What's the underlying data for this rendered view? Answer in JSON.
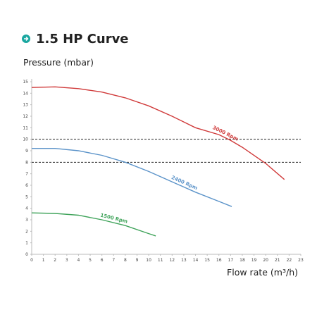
{
  "chart_data": {
    "type": "line",
    "title": "1.5 HP Curve",
    "y_label": "Pressure (mbar)",
    "x_label": "Flow rate (m³/h)",
    "xlim": [
      0,
      23
    ],
    "xticks": [
      0,
      1,
      2,
      3,
      4,
      5,
      6,
      7,
      8,
      9,
      10,
      11,
      12,
      13,
      14,
      15,
      16,
      17,
      18,
      19,
      20,
      21,
      22,
      23
    ],
    "ylim": [
      0,
      15
    ],
    "yticks": [
      0,
      1,
      2,
      3,
      4,
      5,
      6,
      7,
      8,
      9,
      10,
      11,
      12,
      13,
      14,
      15
    ],
    "reference_lines": [
      10,
      8
    ],
    "series": [
      {
        "name": "3000 Rpm",
        "color": "#d03a3a",
        "x": [
          0,
          2,
          4,
          6,
          8,
          10,
          12,
          14,
          16,
          17,
          18,
          20,
          21.6
        ],
        "values": [
          14.5,
          14.55,
          14.4,
          14.1,
          13.6,
          12.9,
          12.0,
          11.0,
          10.4,
          9.9,
          9.3,
          7.9,
          6.5
        ]
      },
      {
        "name": "2400 Rpm",
        "color": "#5b93c9",
        "x": [
          0,
          2,
          4,
          6,
          8,
          10,
          12,
          14,
          16,
          17.1
        ],
        "values": [
          9.2,
          9.2,
          9.0,
          8.6,
          8.0,
          7.2,
          6.3,
          5.4,
          4.6,
          4.15
        ]
      },
      {
        "name": "1500 Rpm",
        "color": "#3fa35a",
        "x": [
          0,
          2,
          4,
          6,
          8,
          10,
          10.6
        ],
        "values": [
          3.6,
          3.55,
          3.4,
          3.0,
          2.5,
          1.8,
          1.6
        ]
      }
    ]
  }
}
